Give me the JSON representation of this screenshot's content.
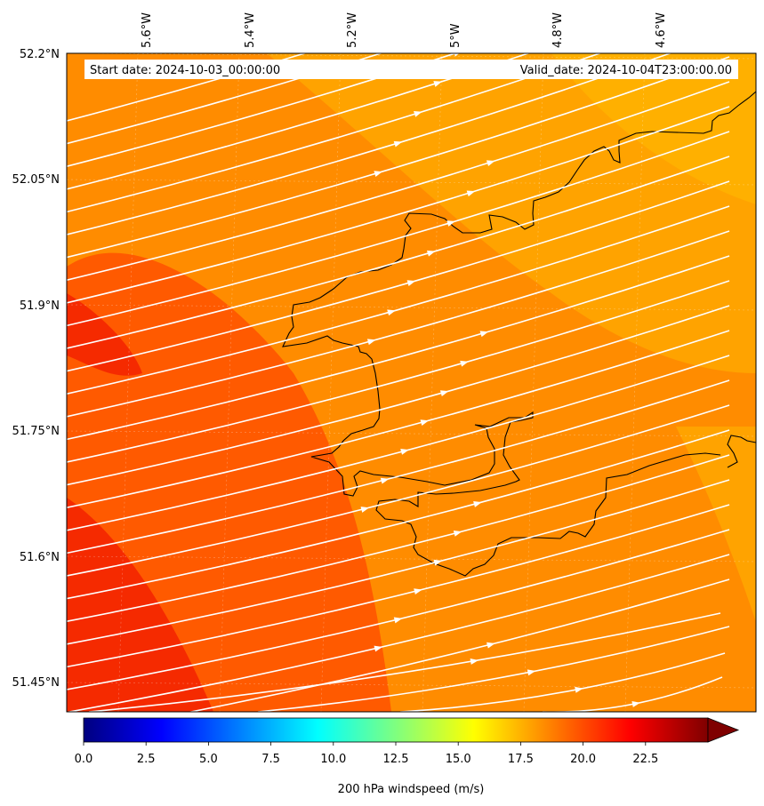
{
  "map": {
    "header": {
      "start_date": "Start date: 2024-10-03_00:00:00",
      "valid_date": "Valid_date: 2024-10-04T23:00:00.00"
    },
    "lon_labels": [
      "5.6°W",
      "5.4°W",
      "5.2°W",
      "5°W",
      "4.8°W",
      "4.6°W"
    ],
    "lat_labels": [
      "52.2°N",
      "52.05°N",
      "51.9°N",
      "51.75°N",
      "51.6°N",
      "51.45°N"
    ],
    "field_colors": {
      "background": "#ff8c00",
      "stronger": "#ff5a00",
      "strongest": "#f52a00",
      "weaker": "#ffa300",
      "weakest": "#ffb000"
    },
    "streamline_color": "#ffffff",
    "coastline_color": "#000000"
  },
  "colorbar": {
    "label": "200 hPa windspeed (m/s)",
    "min": 0,
    "max": 25,
    "extend": "max",
    "ticks": [
      "0.0",
      "2.5",
      "5.0",
      "7.5",
      "10.0",
      "12.5",
      "15.0",
      "17.5",
      "20.0",
      "22.5"
    ],
    "stops": [
      "#00007f",
      "#0000ff",
      "#007fff",
      "#00ffff",
      "#7fff7f",
      "#ffff00",
      "#ff7f00",
      "#ff0000",
      "#7f0000"
    ]
  }
}
